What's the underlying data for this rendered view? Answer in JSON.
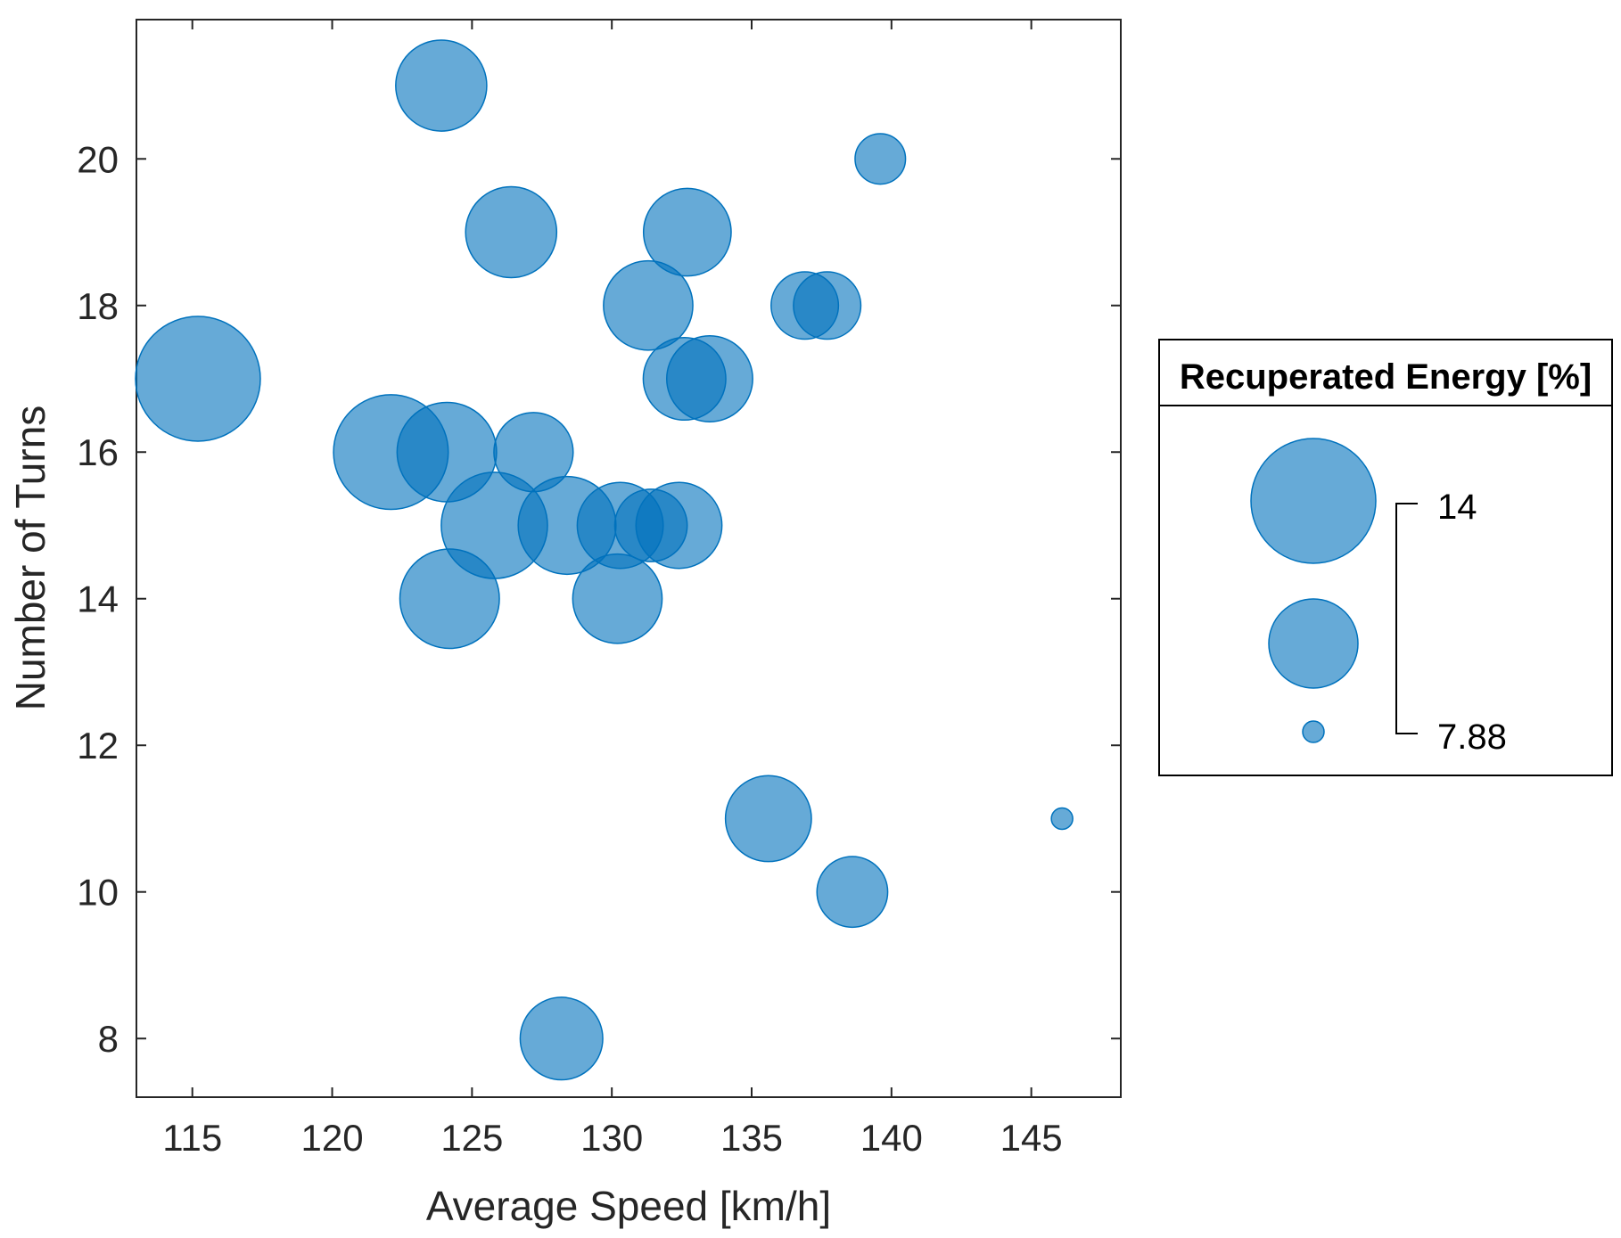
{
  "chart_data": {
    "type": "scatter",
    "variant": "bubble",
    "title": "",
    "xlabel": "Average Speed [km/h]",
    "ylabel": "Number of Turns",
    "xlim": [
      113,
      148.2
    ],
    "ylim": [
      7.2,
      21.9
    ],
    "xticks": [
      "115",
      "120",
      "125",
      "130",
      "135",
      "140",
      "145"
    ],
    "yticks": [
      "8",
      "10",
      "12",
      "14",
      "16",
      "18",
      "20"
    ],
    "marker_color": "#0072BD",
    "marker_alpha": 0.6,
    "size_variable": "Recuperated Energy [%]",
    "size_range": [
      7.88,
      14
    ],
    "points": [
      {
        "x": 115.2,
        "y": 17,
        "size": 14.0
      },
      {
        "x": 122.1,
        "y": 16,
        "size": 13.4
      },
      {
        "x": 123.9,
        "y": 21,
        "size": 12.0
      },
      {
        "x": 124.1,
        "y": 16,
        "size": 12.5
      },
      {
        "x": 124.2,
        "y": 14,
        "size": 12.5
      },
      {
        "x": 125.8,
        "y": 15,
        "size": 12.9
      },
      {
        "x": 126.4,
        "y": 19,
        "size": 12.0
      },
      {
        "x": 127.2,
        "y": 16,
        "size": 11.3
      },
      {
        "x": 128.2,
        "y": 8,
        "size": 11.5
      },
      {
        "x": 128.4,
        "y": 15,
        "size": 12.4
      },
      {
        "x": 130.2,
        "y": 14,
        "size": 11.9
      },
      {
        "x": 130.3,
        "y": 15,
        "size": 11.7
      },
      {
        "x": 131.4,
        "y": 15,
        "size": 10.9
      },
      {
        "x": 131.3,
        "y": 18,
        "size": 11.9
      },
      {
        "x": 132.4,
        "y": 15,
        "size": 11.7
      },
      {
        "x": 132.6,
        "y": 17,
        "size": 11.5
      },
      {
        "x": 132.7,
        "y": 19,
        "size": 11.8
      },
      {
        "x": 133.5,
        "y": 17,
        "size": 11.7
      },
      {
        "x": 135.6,
        "y": 11,
        "size": 11.7
      },
      {
        "x": 136.9,
        "y": 18,
        "size": 10.6
      },
      {
        "x": 137.7,
        "y": 18,
        "size": 10.6
      },
      {
        "x": 138.6,
        "y": 10,
        "size": 10.8
      },
      {
        "x": 139.6,
        "y": 20,
        "size": 9.6
      },
      {
        "x": 146.1,
        "y": 11,
        "size": 7.88
      }
    ],
    "legend": {
      "title": "Recuperated Energy [%]",
      "max_label": "14",
      "min_label": "7.88",
      "placement": "right"
    }
  }
}
